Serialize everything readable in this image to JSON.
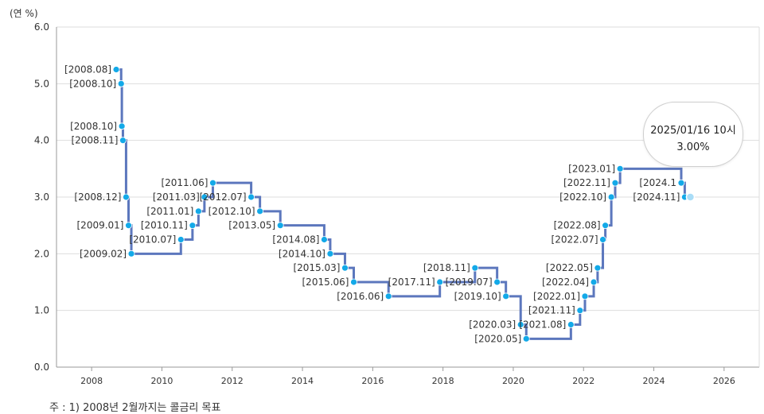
{
  "unit_label": "(연 %)",
  "footnote": "주 : 1) 2008년 2월까지는 콜금리 목표",
  "tooltip": {
    "datetime": "2025/01/16 10시",
    "value": "3.00%"
  },
  "colors": {
    "line": "#5c77bd",
    "point": "#13a9e8",
    "grid": "#dddddd",
    "axis": "#999999"
  },
  "chart_data": {
    "type": "line",
    "step": true,
    "xlim": [
      2007,
      2027
    ],
    "ylim": [
      0,
      6
    ],
    "xticks": [
      "2008",
      "2010",
      "2012",
      "2014",
      "2016",
      "2018",
      "2020",
      "2022",
      "2024",
      "2026"
    ],
    "yticks": [
      "0.0",
      "1.0",
      "2.0",
      "3.0",
      "4.0",
      "5.0",
      "6.0"
    ],
    "grid": true,
    "legend": "none",
    "points": [
      {
        "x": 2008.7,
        "y": 5.25,
        "label": "[2008.08]"
      },
      {
        "x": 2008.84,
        "y": 5.0,
        "label": "[2008.10]"
      },
      {
        "x": 2008.86,
        "y": 4.25,
        "label": "[2008.10]"
      },
      {
        "x": 2008.89,
        "y": 4.0,
        "label": "[2008.11]"
      },
      {
        "x": 2008.98,
        "y": 3.0,
        "label": "[2008.12]"
      },
      {
        "x": 2009.05,
        "y": 2.5,
        "label": "[2009.01]"
      },
      {
        "x": 2009.13,
        "y": 2.0,
        "label": "[2009.02]"
      },
      {
        "x": 2010.54,
        "y": 2.25,
        "label": "[2010.07]"
      },
      {
        "x": 2010.87,
        "y": 2.5,
        "label": "[2010.11]"
      },
      {
        "x": 2011.04,
        "y": 2.75,
        "label": "[2011.01]"
      },
      {
        "x": 2011.21,
        "y": 3.0,
        "label": "[2011.03]"
      },
      {
        "x": 2011.45,
        "y": 3.25,
        "label": "[2011.06]"
      },
      {
        "x": 2012.54,
        "y": 3.0,
        "label": "[2012.07]"
      },
      {
        "x": 2012.79,
        "y": 2.75,
        "label": "[2012.10]"
      },
      {
        "x": 2013.37,
        "y": 2.5,
        "label": "[2013.05]"
      },
      {
        "x": 2014.62,
        "y": 2.25,
        "label": "[2014.08]"
      },
      {
        "x": 2014.79,
        "y": 2.0,
        "label": "[2014.10]"
      },
      {
        "x": 2015.21,
        "y": 1.75,
        "label": "[2015.03]"
      },
      {
        "x": 2015.46,
        "y": 1.5,
        "label": "[2015.06]"
      },
      {
        "x": 2016.45,
        "y": 1.25,
        "label": "[2016.06]"
      },
      {
        "x": 2017.91,
        "y": 1.5,
        "label": "[2017.11]"
      },
      {
        "x": 2018.91,
        "y": 1.75,
        "label": "[2018.11]"
      },
      {
        "x": 2019.54,
        "y": 1.5,
        "label": "[2019.07]"
      },
      {
        "x": 2019.79,
        "y": 1.25,
        "label": "[2019.10]"
      },
      {
        "x": 2020.21,
        "y": 0.75,
        "label": "[2020.03]"
      },
      {
        "x": 2020.37,
        "y": 0.5,
        "label": "[2020.05]"
      },
      {
        "x": 2021.64,
        "y": 0.75,
        "label": "[2021.08]"
      },
      {
        "x": 2021.9,
        "y": 1.0,
        "label": "[2021.11]"
      },
      {
        "x": 2022.04,
        "y": 1.25,
        "label": "[2022.01]"
      },
      {
        "x": 2022.29,
        "y": 1.5,
        "label": "[2022.04]"
      },
      {
        "x": 2022.4,
        "y": 1.75,
        "label": "[2022.05]"
      },
      {
        "x": 2022.55,
        "y": 2.25,
        "label": "[2022.07]"
      },
      {
        "x": 2022.62,
        "y": 2.5,
        "label": "[2022.08]"
      },
      {
        "x": 2022.79,
        "y": 3.0,
        "label": "[2022.10]"
      },
      {
        "x": 2022.9,
        "y": 3.25,
        "label": "[2022.11]"
      },
      {
        "x": 2023.04,
        "y": 3.5,
        "label": "[2023.01]"
      },
      {
        "x": 2024.78,
        "y": 3.25,
        "label": "[2024.1"
      },
      {
        "x": 2024.88,
        "y": 3.0,
        "label": "[2024.11]"
      },
      {
        "x": 2025.04,
        "y": 3.0,
        "label": ""
      }
    ]
  }
}
